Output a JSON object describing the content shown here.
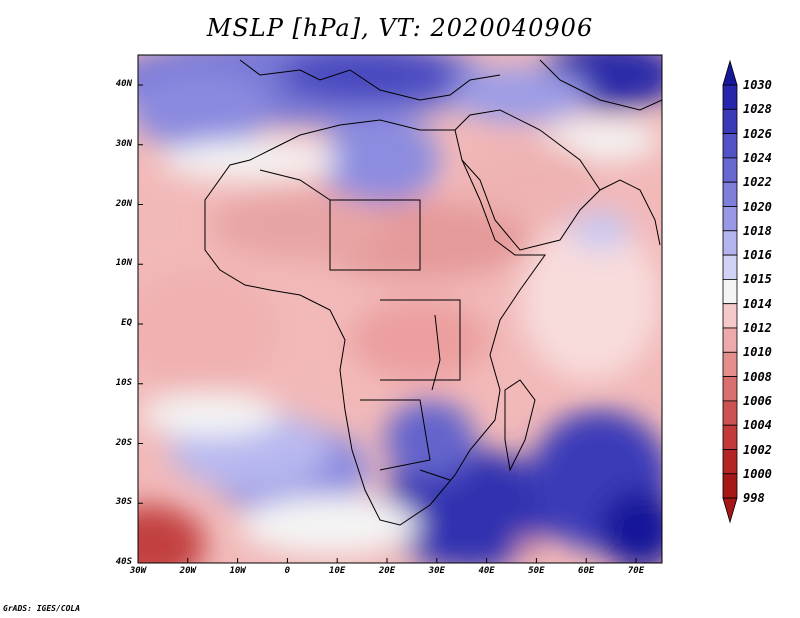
{
  "title": "MSLP [hPa], VT: 2020040906",
  "credit": "GrADS: IGES/COLA",
  "lat_labels": [
    "40N",
    "30N",
    "20N",
    "10N",
    "EQ",
    "10S",
    "20S",
    "30S",
    "40S"
  ],
  "lon_labels": [
    "30W",
    "20W",
    "10W",
    "0",
    "10E",
    "20E",
    "30E",
    "40E",
    "50E",
    "60E",
    "70E"
  ],
  "colorbar": {
    "levels": [
      "1030",
      "1028",
      "1026",
      "1024",
      "1022",
      "1020",
      "1018",
      "1016",
      "1015",
      "1014",
      "1012",
      "1010",
      "1008",
      "1006",
      "1004",
      "1002",
      "1000",
      "998"
    ],
    "colors": [
      "#17179a",
      "#2626ad",
      "#3a3ab9",
      "#5252c6",
      "#6868d0",
      "#7f7fdb",
      "#9898e4",
      "#b4b4ee",
      "#d2d2f6",
      "#f4f4f4",
      "#f5c9c9",
      "#eeaaaa",
      "#e48e8e",
      "#d96f6f",
      "#cd5353",
      "#c23a3a",
      "#b52424",
      "#a51616"
    ]
  }
}
